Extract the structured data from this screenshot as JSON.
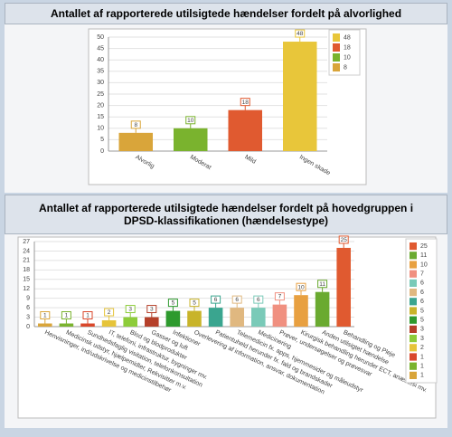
{
  "chart_data": [
    {
      "type": "bar",
      "title": "Antallet af rapporterede utilsigtede hændelser fordelt på alvorlighed",
      "categories": [
        "Alvorlig",
        "Moderat",
        "Mild",
        "Ingen skade"
      ],
      "values": [
        8,
        10,
        18,
        48
      ],
      "colors": [
        "#d9a53a",
        "#7ab32e",
        "#e05a30",
        "#e8c63a"
      ],
      "ylim": [
        0,
        50
      ],
      "yticks": [
        0,
        5,
        10,
        15,
        20,
        25,
        30,
        35,
        40,
        45,
        50
      ],
      "grid": true
    },
    {
      "type": "bar",
      "title": "Antallet af rapporterede utilsigtede hændelser fordelt på hovedgruppen i DPSD-klassifikationen (hændelsestype)",
      "categories": [
        "Henvisninger, ind/udskrivelse og medicinstilbehør",
        "Medicinsk udstyr, hjælpemidler, Rekvisitter m.v.",
        "Sundhedsfaglig visitation, telefonkonsultation",
        "IT, telefoni, infrastruktur, bygninger mv.",
        "Blod og blodprodukter",
        "Gasser og luft",
        "Infektioner",
        "Overlevering af information, ansvar, dokumentation",
        "Patientuheld herunder fx. fald og brandskader",
        "Telemedicin fx. apps, hjemmesider og måleudstyr",
        "Medicinering",
        "Prøver, undersøgelser og prøvesvar",
        "Kirurgisk behandling herunder ECT, anæstesi mv.",
        "Anden utilsigtet hændelse",
        "Behandling og Pleje"
      ],
      "values": [
        1,
        1,
        1,
        2,
        3,
        3,
        5,
        5,
        6,
        6,
        6,
        7,
        10,
        11,
        25
      ],
      "colors": [
        "#d9a53a",
        "#7ab32e",
        "#d9472b",
        "#e6c43a",
        "#8dcc3a",
        "#b5402a",
        "#2e9a2e",
        "#c8b42a",
        "#3aa58f",
        "#e0b880",
        "#7acab8",
        "#f09080",
        "#e8a040",
        "#6aaa30",
        "#e05a30"
      ],
      "ylim": [
        0,
        27
      ],
      "yticks": [
        0,
        3,
        6,
        9,
        12,
        15,
        18,
        21,
        24,
        27
      ],
      "grid": true
    }
  ]
}
